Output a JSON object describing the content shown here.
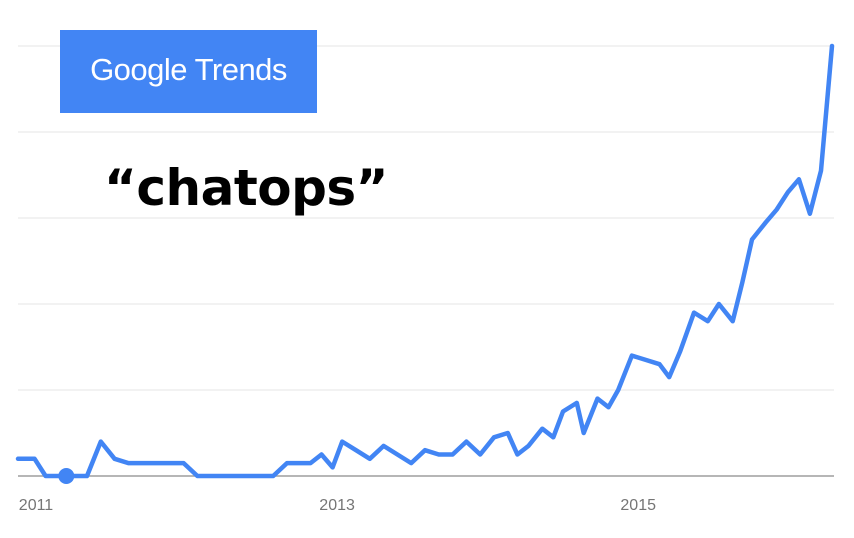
{
  "brand": {
    "name": "Google Trends",
    "primary_word": "Google",
    "secondary_word": "Trends",
    "box_color": "#4285f4",
    "text_color": "#ffffff"
  },
  "search_term": "“chatops”",
  "chart_data": {
    "type": "line",
    "title": "",
    "xlabel": "",
    "ylabel": "",
    "ylim": [
      0,
      100
    ],
    "xlim": [
      2011.0,
      2016.42
    ],
    "grid": true,
    "line_color": "#4285f4",
    "x_ticks": [
      {
        "value": 2011,
        "label": "2011"
      },
      {
        "value": 2013,
        "label": "2013"
      },
      {
        "value": 2015,
        "label": "2015"
      }
    ],
    "series": [
      {
        "values": [
          [
            2011.0,
            4
          ],
          [
            2011.12,
            4
          ],
          [
            2011.2,
            0
          ],
          [
            2011.35,
            0
          ],
          [
            2011.5,
            0
          ],
          [
            2011.6,
            8
          ],
          [
            2011.7,
            4
          ],
          [
            2011.8,
            3
          ],
          [
            2011.9,
            3
          ],
          [
            2012.0,
            3
          ],
          [
            2012.1,
            3
          ],
          [
            2012.2,
            3
          ],
          [
            2012.3,
            0
          ],
          [
            2012.45,
            0
          ],
          [
            2012.6,
            0
          ],
          [
            2012.75,
            0
          ],
          [
            2012.85,
            0
          ],
          [
            2012.95,
            3
          ],
          [
            2013.05,
            3
          ],
          [
            2013.12,
            3
          ],
          [
            2013.2,
            5
          ],
          [
            2013.28,
            2
          ],
          [
            2013.35,
            8
          ],
          [
            2013.45,
            6
          ],
          [
            2013.55,
            4
          ],
          [
            2013.65,
            7
          ],
          [
            2013.75,
            5
          ],
          [
            2013.85,
            3
          ],
          [
            2013.95,
            6
          ],
          [
            2014.05,
            5
          ],
          [
            2014.15,
            5
          ],
          [
            2014.25,
            8
          ],
          [
            2014.35,
            5
          ],
          [
            2014.45,
            9
          ],
          [
            2014.55,
            10
          ],
          [
            2014.62,
            5
          ],
          [
            2014.7,
            7
          ],
          [
            2014.8,
            11
          ],
          [
            2014.88,
            9
          ],
          [
            2014.95,
            15
          ],
          [
            2015.05,
            17
          ],
          [
            2015.1,
            10
          ],
          [
            2015.2,
            18
          ],
          [
            2015.28,
            16
          ],
          [
            2015.35,
            20
          ],
          [
            2015.45,
            28
          ],
          [
            2015.55,
            27
          ],
          [
            2015.65,
            26
          ],
          [
            2015.72,
            23
          ],
          [
            2015.8,
            29
          ],
          [
            2015.9,
            38
          ],
          [
            2016.0,
            36
          ],
          [
            2016.08,
            40
          ],
          [
            2016.18,
            36
          ],
          [
            2016.25,
            45
          ],
          [
            2016.32,
            55
          ],
          [
            2016.42,
            59
          ],
          [
            2016.5,
            62
          ],
          [
            2016.58,
            66
          ],
          [
            2016.66,
            69
          ],
          [
            2016.74,
            61
          ],
          [
            2016.82,
            71
          ],
          [
            2016.9,
            100
          ]
        ]
      }
    ],
    "highlight_point": {
      "x": 2011.35,
      "y": 0
    }
  }
}
